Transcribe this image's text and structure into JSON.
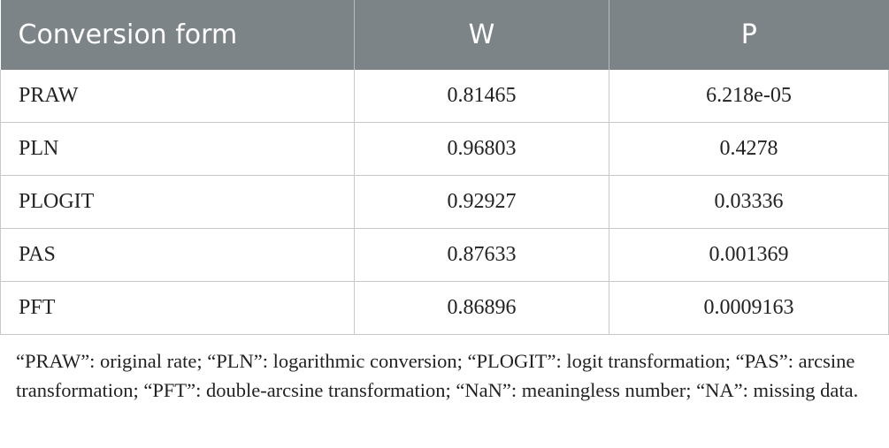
{
  "table": {
    "headers": [
      "Conversion form",
      "W",
      "P"
    ],
    "rows": [
      [
        "PRAW",
        "0.81465",
        "6.218e-05"
      ],
      [
        "PLN",
        "0.96803",
        "0.4278"
      ],
      [
        "PLOGIT",
        "0.92927",
        "0.03336"
      ],
      [
        "PAS",
        "0.87633",
        "0.001369"
      ],
      [
        "PFT",
        "0.86896",
        "0.0009163"
      ]
    ]
  },
  "footnote": "“PRAW”: original rate; “PLN”: logarithmic conversion; “PLOGIT”: logit transformation; “PAS”: arcsine transformation; “PFT”: double-arcsine transformation; “NaN”: meaningless number; “NA”: missing data.",
  "colors": {
    "header_bg": "#7d8488",
    "header_text": "#ffffff",
    "border": "#c8c8c8",
    "body_text": "#222222"
  }
}
